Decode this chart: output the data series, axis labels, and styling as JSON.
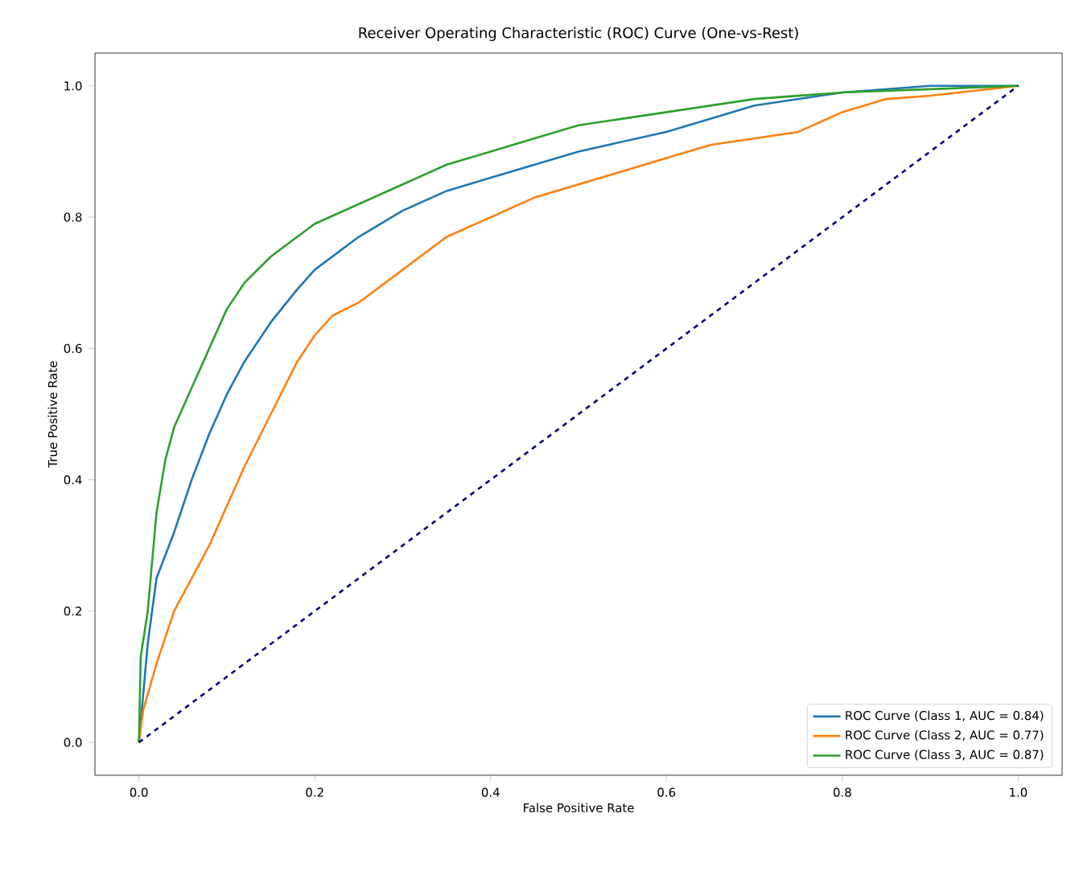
{
  "chart_data": {
    "type": "line",
    "title": "Receiver Operating Characteristic (ROC) Curve (One-vs-Rest)",
    "xlabel": "False Positive Rate",
    "ylabel": "True Positive Rate",
    "xlim": [
      -0.05,
      1.05
    ],
    "ylim": [
      -0.05,
      1.05
    ],
    "xticks": [
      {
        "value": 0,
        "label": "0.0"
      },
      {
        "value": 0.2,
        "label": "0.2"
      },
      {
        "value": 0.4,
        "label": "0.4"
      },
      {
        "value": 0.6,
        "label": "0.6"
      },
      {
        "value": 0.8,
        "label": "0.8"
      },
      {
        "value": 1,
        "label": "1.0"
      }
    ],
    "yticks": [
      {
        "value": 0,
        "label": "0.0"
      },
      {
        "value": 0.2,
        "label": "0.2"
      },
      {
        "value": 0.4,
        "label": "0.4"
      },
      {
        "value": 0.6,
        "label": "0.6"
      },
      {
        "value": 0.8,
        "label": "0.8"
      },
      {
        "value": 1,
        "label": "1.0"
      }
    ],
    "legend": "bottom right",
    "grid": false,
    "series": [
      {
        "name": "ROC Curve (Class 1, AUC = 0.84)",
        "color": "#1f77b4",
        "line_style": "solid",
        "x": [
          0,
          0.01,
          0.02,
          0.04,
          0.06,
          0.08,
          0.1,
          0.12,
          0.15,
          0.18,
          0.2,
          0.25,
          0.3,
          0.35,
          0.4,
          0.45,
          0.5,
          0.6,
          0.7,
          0.8,
          0.9,
          1
        ],
        "values": [
          0,
          0.15,
          0.25,
          0.32,
          0.4,
          0.47,
          0.53,
          0.58,
          0.64,
          0.69,
          0.72,
          0.77,
          0.81,
          0.84,
          0.86,
          0.88,
          0.9,
          0.93,
          0.97,
          0.99,
          1.0,
          1.0
        ]
      },
      {
        "name": "ROC Curve (Class 2, AUC = 0.77)",
        "color": "#ff7f0e",
        "line_style": "solid",
        "x": [
          0,
          0.005,
          0.02,
          0.04,
          0.06,
          0.08,
          0.1,
          0.12,
          0.15,
          0.18,
          0.2,
          0.22,
          0.25,
          0.3,
          0.35,
          0.4,
          0.45,
          0.5,
          0.55,
          0.6,
          0.65,
          0.7,
          0.75,
          0.8,
          0.85,
          0.9,
          1
        ],
        "values": [
          0,
          0.05,
          0.12,
          0.2,
          0.25,
          0.3,
          0.36,
          0.42,
          0.5,
          0.58,
          0.62,
          0.65,
          0.67,
          0.72,
          0.77,
          0.8,
          0.83,
          0.85,
          0.87,
          0.89,
          0.91,
          0.92,
          0.93,
          0.96,
          0.98,
          0.985,
          1.0
        ]
      },
      {
        "name": "ROC Curve (Class 3, AUC = 0.87)",
        "color": "#2ca02c",
        "line_style": "solid",
        "x": [
          0,
          0.002,
          0.01,
          0.02,
          0.03,
          0.04,
          0.06,
          0.08,
          0.1,
          0.12,
          0.15,
          0.18,
          0.2,
          0.25,
          0.3,
          0.35,
          0.4,
          0.45,
          0.5,
          0.6,
          0.7,
          0.8,
          0.9,
          1
        ],
        "values": [
          0,
          0.13,
          0.2,
          0.35,
          0.43,
          0.48,
          0.54,
          0.6,
          0.66,
          0.7,
          0.74,
          0.77,
          0.79,
          0.82,
          0.85,
          0.88,
          0.9,
          0.92,
          0.94,
          0.96,
          0.98,
          0.99,
          0.995,
          1.0
        ]
      },
      {
        "color": "#000080",
        "line_style": "dashed",
        "x": [
          0,
          1
        ],
        "values": [
          0,
          1
        ]
      }
    ]
  }
}
